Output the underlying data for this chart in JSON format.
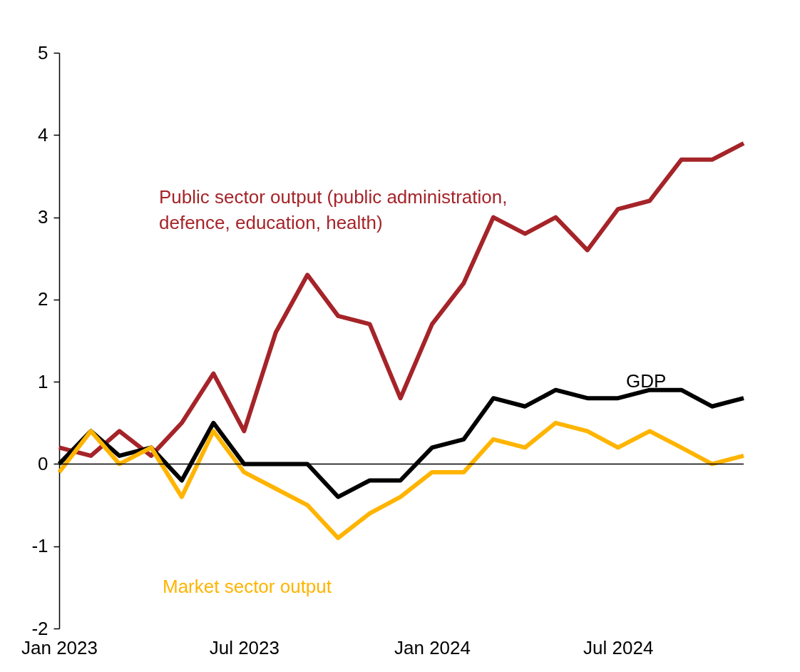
{
  "chart_data": {
    "type": "line",
    "x": [
      "2023-01",
      "2023-02",
      "2023-03",
      "2023-04",
      "2023-05",
      "2023-06",
      "2023-07",
      "2023-08",
      "2023-09",
      "2023-10",
      "2023-11",
      "2023-12",
      "2024-01",
      "2024-02",
      "2024-03",
      "2024-04",
      "2024-05",
      "2024-06",
      "2024-07",
      "2024-08",
      "2024-09",
      "2024-10",
      "2024-11"
    ],
    "series": [
      {
        "name": "Public sector output (public administration, defence, education, health)",
        "color": "#a52429",
        "values": [
          0.2,
          0.1,
          0.4,
          0.1,
          0.5,
          1.1,
          0.4,
          1.6,
          2.3,
          1.8,
          1.7,
          0.8,
          1.7,
          2.2,
          3.0,
          2.8,
          3.0,
          2.6,
          3.1,
          3.2,
          3.7,
          3.7,
          3.9
        ]
      },
      {
        "name": "GDP",
        "color": "#000000",
        "values": [
          0.0,
          0.4,
          0.1,
          0.2,
          -0.2,
          0.5,
          0.0,
          0.0,
          0.0,
          -0.4,
          -0.2,
          -0.2,
          0.2,
          0.3,
          0.8,
          0.7,
          0.9,
          0.8,
          0.8,
          0.9,
          0.9,
          0.7,
          0.8
        ]
      },
      {
        "name": "Market sector output",
        "color": "#ffb400",
        "values": [
          -0.1,
          0.4,
          0.0,
          0.2,
          -0.4,
          0.4,
          -0.1,
          -0.3,
          -0.5,
          -0.9,
          -0.6,
          -0.4,
          -0.1,
          -0.1,
          0.3,
          0.2,
          0.5,
          0.4,
          0.2,
          0.4,
          0.2,
          0.0,
          0.1
        ]
      }
    ],
    "xlim": [
      "2023-01",
      "2024-11"
    ],
    "xticks": [
      {
        "value": "2023-01",
        "label": "Jan 2023"
      },
      {
        "value": "2023-07",
        "label": "Jul 2023"
      },
      {
        "value": "2024-01",
        "label": "Jan 2024"
      },
      {
        "value": "2024-07",
        "label": "Jul 2024"
      }
    ],
    "ylim": [
      -2,
      5
    ],
    "yticks": [
      -2,
      -1,
      0,
      1,
      2,
      3,
      4,
      5
    ],
    "legend": false,
    "marker": "none",
    "line_style": "solid"
  }
}
